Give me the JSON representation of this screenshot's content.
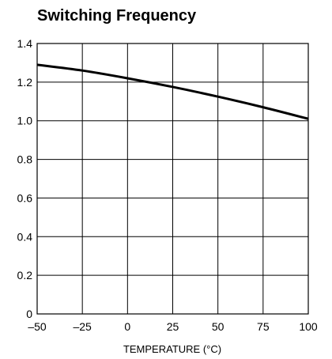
{
  "chart_data": {
    "type": "line",
    "title": "Switching Frequency",
    "xlabel": "TEMPERATURE (°C)",
    "ylabel": "",
    "xlim": [
      -50,
      100
    ],
    "ylim": [
      0,
      1.4
    ],
    "grid": true,
    "x_ticks": [
      -50,
      -25,
      0,
      25,
      50,
      75,
      100
    ],
    "x_tick_labels": [
      "–50",
      "–25",
      "0",
      "25",
      "50",
      "75",
      "100"
    ],
    "y_ticks": [
      0,
      0.2,
      0.4,
      0.6,
      0.8,
      1.0,
      1.2,
      1.4
    ],
    "y_tick_labels": [
      "0",
      "0.2",
      "0.4",
      "0.6",
      "0.8",
      "1.0",
      "1.2",
      "1.4"
    ],
    "series": [
      {
        "x": [
          -50,
          -25,
          0,
          25,
          50,
          75,
          100
        ],
        "y": [
          1.29,
          1.26,
          1.22,
          1.175,
          1.125,
          1.07,
          1.01
        ]
      }
    ]
  },
  "colors": {
    "line": "#000000",
    "grid": "#000000",
    "background": "#ffffff"
  }
}
